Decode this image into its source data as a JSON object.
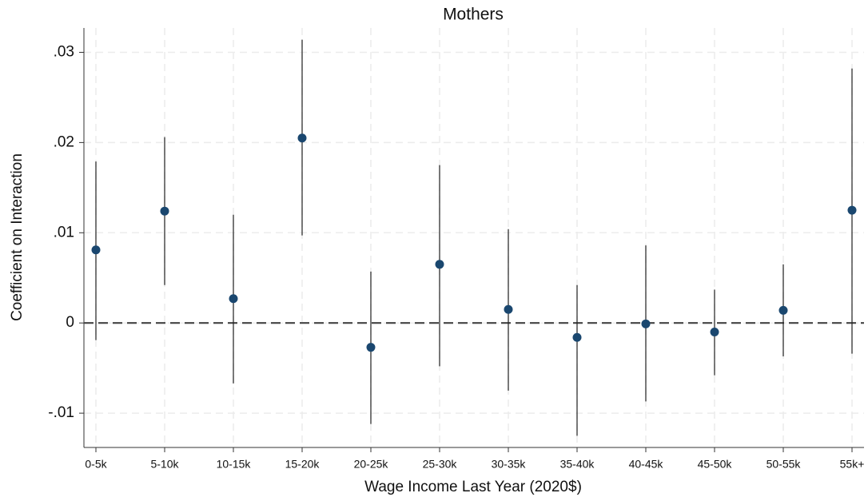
{
  "chart_data": {
    "type": "coefplot",
    "title": "Mothers",
    "x_label": "Wage Income Last Year (2020$)",
    "y_label": "Coefficient on Interaction",
    "categories": [
      "0-5k",
      "5-10k",
      "10-15k",
      "15-20k",
      "20-25k",
      "25-30k",
      "30-35k",
      "35-40k",
      "40-45k",
      "45-50k",
      "50-55k",
      "55k+"
    ],
    "series": [
      {
        "color": "#1a476f",
        "values": [
          0.0081,
          0.0124,
          0.0027,
          0.0205,
          -0.0027,
          0.0065,
          0.0015,
          -0.0016,
          -0.0001,
          -0.001,
          0.0014,
          0.0125
        ],
        "ci_low": [
          -0.0019,
          0.0042,
          -0.0067,
          0.0097,
          -0.0112,
          -0.0048,
          -0.0075,
          -0.0125,
          -0.0087,
          -0.0058,
          -0.0037,
          -0.0034
        ],
        "ci_high": [
          0.0179,
          0.0206,
          0.012,
          0.0314,
          0.0057,
          0.0175,
          0.0104,
          0.0042,
          0.0086,
          0.0037,
          0.0065,
          0.0282
        ]
      }
    ],
    "ylim": [
      -0.0138,
      0.0327
    ],
    "yticks": [
      {
        "value": -0.01,
        "label": "-.01"
      },
      0,
      {
        "value": 0.01,
        "label": ".01"
      },
      {
        "value": 0.02,
        "label": ".02"
      },
      {
        "value": 0.03,
        "label": ".03"
      }
    ],
    "reference_line": 0,
    "grid": true
  }
}
